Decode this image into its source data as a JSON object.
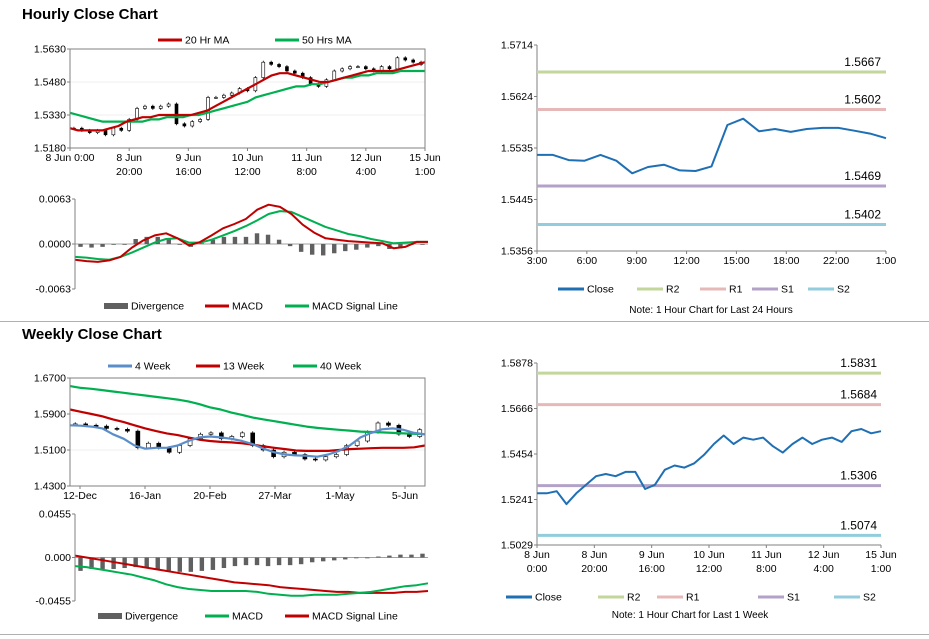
{
  "sections": {
    "hourly_title": "Hourly Close Chart",
    "weekly_title": "Weekly Close Chart"
  },
  "colors": {
    "ma20": "#c00000",
    "ma50": "#00b050",
    "divergence": "#606060",
    "macd_red": "#c00000",
    "macd_green": "#00b050",
    "close": "#1f6fb4",
    "r2": "#c3d69b",
    "r1": "#e6b9b8",
    "s1": "#b3a2c7",
    "s2": "#93cddd",
    "week4": "#5b8ec9"
  },
  "chart_data": [
    {
      "id": "hourly_price",
      "type": "candlestick",
      "legend": [
        "20 Hr MA",
        "50 Hrs MA"
      ],
      "yticks": [
        "1.5630",
        "1.5480",
        "1.5330",
        "1.5180"
      ],
      "ylim": [
        1.518,
        1.563
      ],
      "xticks": [
        [
          "8 Jun 0:00",
          ""
        ],
        [
          "8 Jun",
          "20:00"
        ],
        [
          "9 Jun",
          "16:00"
        ],
        [
          "10 Jun",
          "12:00"
        ],
        [
          "11 Jun",
          "8:00"
        ],
        [
          "12 Jun",
          "4:00"
        ],
        [
          "15 Jun",
          "1:00"
        ]
      ],
      "close": [
        1.527,
        1.526,
        1.525,
        1.526,
        1.524,
        1.527,
        1.526,
        1.531,
        1.536,
        1.537,
        1.536,
        1.537,
        1.538,
        1.529,
        1.528,
        1.53,
        1.531,
        1.541,
        1.541,
        1.542,
        1.543,
        1.545,
        1.544,
        1.55,
        1.557,
        1.556,
        1.555,
        1.553,
        1.552,
        1.55,
        1.547,
        1.546,
        1.549,
        1.553,
        1.554,
        1.555,
        1.555,
        1.554,
        1.553,
        1.555,
        1.554,
        1.559,
        1.558,
        1.557,
        1.556
      ],
      "ma20": [
        1.527,
        1.526,
        1.526,
        1.526,
        1.526,
        1.527,
        1.528,
        1.53,
        1.531,
        1.532,
        1.532,
        1.533,
        1.533,
        1.533,
        1.533,
        1.533,
        1.534,
        1.535,
        1.537,
        1.539,
        1.541,
        1.543,
        1.545,
        1.547,
        1.549,
        1.551,
        1.552,
        1.552,
        1.551,
        1.55,
        1.549,
        1.548,
        1.548,
        1.549,
        1.55,
        1.551,
        1.552,
        1.553,
        1.553,
        1.553,
        1.553,
        1.554,
        1.555,
        1.556,
        1.557
      ],
      "ma50": [
        1.534,
        1.533,
        1.532,
        1.531,
        1.53,
        1.53,
        1.53,
        1.53,
        1.53,
        1.53,
        1.531,
        1.531,
        1.532,
        1.532,
        1.532,
        1.533,
        1.533,
        1.534,
        1.535,
        1.536,
        1.537,
        1.538,
        1.539,
        1.541,
        1.542,
        1.543,
        1.544,
        1.545,
        1.546,
        1.546,
        1.547,
        1.547,
        1.548,
        1.549,
        1.55,
        1.55,
        1.551,
        1.551,
        1.552,
        1.552,
        1.552,
        1.553,
        1.553,
        1.553,
        1.553
      ]
    },
    {
      "id": "hourly_macd",
      "type": "macd",
      "legend": [
        "Divergence",
        "MACD",
        "MACD Signal Line"
      ],
      "yticks": [
        "0.0063",
        "0.0000",
        "-0.0063"
      ],
      "ylim": [
        -0.0063,
        0.0063
      ],
      "macd": [
        -0.0022,
        -0.0024,
        -0.0025,
        -0.0023,
        -0.0018,
        -0.0005,
        0.0005,
        0.0012,
        0.0015,
        0.0008,
        -0.0002,
        0.0003,
        0.0012,
        0.0022,
        0.0028,
        0.0035,
        0.0048,
        0.0055,
        0.0052,
        0.0042,
        0.0027,
        0.0016,
        0.0008,
        0.0006,
        0.0004,
        0.0003,
        0.0002,
        0.0001,
        -0.0006,
        -0.0004,
        0.0003,
        0.0003
      ],
      "signal": [
        -0.0018,
        -0.0019,
        -0.0021,
        -0.0022,
        -0.0018,
        -0.0012,
        -0.0005,
        0.0002,
        0.0007,
        0.0008,
        0.0002,
        0.0002,
        0.0006,
        0.0012,
        0.0018,
        0.0025,
        0.0033,
        0.0042,
        0.0046,
        0.0045,
        0.0038,
        0.0031,
        0.0024,
        0.0019,
        0.0014,
        0.0011,
        0.0007,
        0.0004,
        0.0001,
        0.0002,
        0.0003,
        0.0003
      ],
      "divergence": [
        -0.0004,
        -0.0005,
        -0.0004,
        -0.0001,
        0.0,
        0.0007,
        0.001,
        0.001,
        0.0008,
        0.0,
        -0.0004,
        0.0001,
        0.0006,
        0.001,
        0.001,
        0.001,
        0.0015,
        0.0013,
        0.0006,
        -0.0003,
        -0.0011,
        -0.0015,
        -0.0016,
        -0.0013,
        -0.001,
        -0.0008,
        -0.0005,
        -0.0003,
        -0.0007,
        -0.0006,
        0.0,
        0.0
      ]
    },
    {
      "id": "hourly_close_levels",
      "type": "line",
      "yticks": [
        "1.5714",
        "1.5624",
        "1.5535",
        "1.5445",
        "1.5356"
      ],
      "ylim": [
        1.5356,
        1.5714
      ],
      "xticks": [
        "3:00",
        "6:00",
        "9:00",
        "12:00",
        "15:00",
        "18:00",
        "22:00",
        "1:00"
      ],
      "levels": {
        "R2": 1.5667,
        "R1": 1.5602,
        "S1": 1.5469,
        "S2": 1.5402
      },
      "level_labels": {
        "R2": "1.5667",
        "R1": "1.5602",
        "S1": "1.5469",
        "S2": "1.5402"
      },
      "close": [
        1.5523,
        1.5523,
        1.5514,
        1.5513,
        1.5523,
        1.5513,
        1.5491,
        1.5502,
        1.5506,
        1.5496,
        1.5495,
        1.5503,
        1.5575,
        1.5586,
        1.5564,
        1.5568,
        1.5563,
        1.5568,
        1.557,
        1.557,
        1.5565,
        1.556,
        1.5552
      ],
      "legend": [
        "Close",
        "R2",
        "R1",
        "S1",
        "S2"
      ],
      "note": "Note: 1 Hour Chart for Last 24 Hours"
    },
    {
      "id": "weekly_price",
      "type": "candlestick",
      "legend": [
        "4 Week",
        "13 Week",
        "40 Week"
      ],
      "yticks": [
        "1.6700",
        "1.5900",
        "1.5100",
        "1.4300"
      ],
      "ylim": [
        1.43,
        1.67
      ],
      "xticks": [
        "12-Dec",
        "16-Jan",
        "20-Feb",
        "27-Mar",
        "1-May",
        "5-Jun"
      ],
      "close": [
        1.568,
        1.565,
        1.563,
        1.558,
        1.556,
        1.552,
        1.515,
        1.525,
        1.515,
        1.505,
        1.52,
        1.535,
        1.545,
        1.548,
        1.535,
        1.54,
        1.548,
        1.52,
        1.51,
        1.495,
        1.505,
        1.5,
        1.49,
        1.488,
        1.495,
        1.5,
        1.52,
        1.53,
        1.55,
        1.57,
        1.565,
        1.545,
        1.54,
        1.555
      ],
      "w4": [
        1.565,
        1.564,
        1.562,
        1.558,
        1.545,
        1.535,
        1.52,
        1.513,
        1.515,
        1.515,
        1.52,
        1.53,
        1.538,
        1.54,
        1.538,
        1.535,
        1.53,
        1.523,
        1.513,
        1.505,
        1.5,
        1.498,
        1.497,
        1.495,
        1.5,
        1.508,
        1.52,
        1.538,
        1.548,
        1.556,
        1.558,
        1.555,
        1.548,
        1.545
      ],
      "w13": [
        1.6,
        1.595,
        1.59,
        1.585,
        1.578,
        1.572,
        1.565,
        1.558,
        1.552,
        1.547,
        1.543,
        1.538,
        1.533,
        1.53,
        1.528,
        1.527,
        1.525,
        1.522,
        1.518,
        1.515,
        1.512,
        1.509,
        1.508,
        1.508,
        1.508,
        1.51,
        1.512,
        1.513,
        1.514,
        1.515,
        1.515,
        1.515,
        1.516,
        1.52
      ],
      "w40": [
        1.652,
        1.648,
        1.646,
        1.643,
        1.64,
        1.637,
        1.634,
        1.631,
        1.628,
        1.625,
        1.622,
        1.618,
        1.612,
        1.605,
        1.6,
        1.593,
        1.588,
        1.582,
        1.578,
        1.574,
        1.57,
        1.566,
        1.562,
        1.559,
        1.557,
        1.555,
        1.553,
        1.551,
        1.55,
        1.549,
        1.548,
        1.547,
        1.546,
        1.545
      ]
    },
    {
      "id": "weekly_macd",
      "type": "macd",
      "legend": [
        "Divergence",
        "MACD",
        "MACD Signal Line"
      ],
      "yticks": [
        "0.0455",
        "0.000",
        "-0.0455"
      ],
      "ylim": [
        -0.0455,
        0.0455
      ],
      "macd": [
        -0.009,
        -0.01,
        -0.012,
        -0.014,
        -0.016,
        -0.018,
        -0.021,
        -0.024,
        -0.028,
        -0.031,
        -0.033,
        -0.034,
        -0.035,
        -0.035,
        -0.035,
        -0.035,
        -0.036,
        -0.038,
        -0.039,
        -0.04,
        -0.04,
        -0.039,
        -0.039,
        -0.039,
        -0.038,
        -0.037,
        -0.036,
        -0.034,
        -0.032,
        -0.03,
        -0.029,
        -0.027
      ],
      "signal": [
        0.002,
        0.0,
        -0.002,
        -0.004,
        -0.006,
        -0.008,
        -0.01,
        -0.012,
        -0.014,
        -0.016,
        -0.018,
        -0.02,
        -0.022,
        -0.024,
        -0.026,
        -0.027,
        -0.028,
        -0.029,
        -0.031,
        -0.032,
        -0.033,
        -0.034,
        -0.035,
        -0.036,
        -0.036,
        -0.037,
        -0.037,
        -0.037,
        -0.037,
        -0.036,
        -0.036,
        -0.035
      ],
      "divergence": [
        -0.014,
        -0.012,
        -0.012,
        -0.012,
        -0.011,
        -0.01,
        -0.011,
        -0.012,
        -0.014,
        -0.015,
        -0.015,
        -0.014,
        -0.013,
        -0.011,
        -0.009,
        -0.008,
        -0.008,
        -0.009,
        -0.008,
        -0.008,
        -0.007,
        -0.005,
        -0.004,
        -0.003,
        -0.002,
        -0.0005,
        0.0,
        0.001,
        0.002,
        0.003,
        0.003,
        0.004
      ]
    },
    {
      "id": "weekly_close_levels",
      "type": "line",
      "yticks": [
        "1.5878",
        "1.5666",
        "1.5454",
        "1.5241",
        "1.5029"
      ],
      "ylim": [
        1.5029,
        1.5878
      ],
      "xticks": [
        [
          "8 Jun",
          "0:00"
        ],
        [
          "8 Jun",
          "20:00"
        ],
        [
          "9 Jun",
          "16:00"
        ],
        [
          "10 Jun",
          "12:00"
        ],
        [
          "11 Jun",
          "8:00"
        ],
        [
          "12 Jun",
          "4:00"
        ],
        [
          "15 Jun",
          "1:00"
        ]
      ],
      "levels": {
        "R2": 1.5831,
        "R1": 1.5684,
        "S1": 1.5306,
        "S2": 1.5074
      },
      "level_labels": {
        "R2": "1.5831",
        "R1": "1.5684",
        "S1": "1.5306",
        "S2": "1.5074"
      },
      "close": [
        1.527,
        1.527,
        1.528,
        1.522,
        1.527,
        1.531,
        1.535,
        1.536,
        1.535,
        1.537,
        1.537,
        1.529,
        1.531,
        1.538,
        1.54,
        1.539,
        1.541,
        1.545,
        1.55,
        1.554,
        1.55,
        1.553,
        1.552,
        1.553,
        1.549,
        1.546,
        1.55,
        1.553,
        1.55,
        1.552,
        1.553,
        1.551,
        1.556,
        1.557,
        1.555,
        1.556
      ],
      "legend": [
        "Close",
        "R2",
        "R1",
        "S1",
        "S2"
      ],
      "note": "Note: 1 Hour Chart for Last 1 Week"
    }
  ]
}
